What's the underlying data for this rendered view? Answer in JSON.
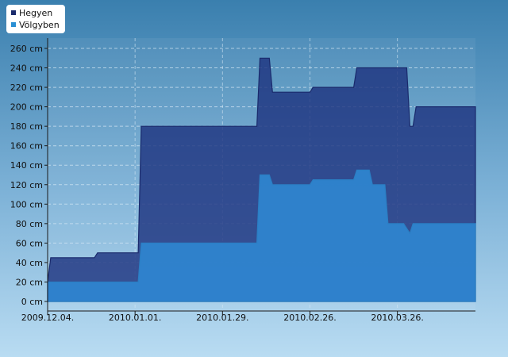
{
  "chart_data": {
    "type": "area",
    "title": "",
    "xlabel": "",
    "ylabel": "",
    "y_unit": "cm",
    "ylim": [
      0,
      270
    ],
    "yticks": [
      0,
      20,
      40,
      60,
      80,
      100,
      120,
      140,
      160,
      180,
      200,
      220,
      240,
      260
    ],
    "ytick_labels": [
      "0 cm",
      "20 cm",
      "40 cm",
      "60 cm",
      "80 cm",
      "100 cm",
      "120 cm",
      "140 cm",
      "160 cm",
      "180 cm",
      "200 cm",
      "220 cm",
      "240 cm",
      "260 cm"
    ],
    "xlim": [
      "2009.12.04.",
      "2010.04.20."
    ],
    "xtick_labels": [
      "2009.12.04.",
      "2010.01.01.",
      "2010.01.29.",
      "2010.02.26.",
      "2010.03.26."
    ],
    "grid": true,
    "legend_position": "top-left",
    "series": [
      {
        "name": "Hegyen",
        "color": "#1a2a6c",
        "points": [
          [
            "2009.12.04.",
            20
          ],
          [
            "2009.12.05.",
            45
          ],
          [
            "2009.12.19.",
            45
          ],
          [
            "2009.12.20.",
            50
          ],
          [
            "2010.01.02.",
            50
          ],
          [
            "2010.01.03.",
            180
          ],
          [
            "2010.02.09.",
            180
          ],
          [
            "2010.02.10.",
            250
          ],
          [
            "2010.02.13.",
            250
          ],
          [
            "2010.02.14.",
            215
          ],
          [
            "2010.02.26.",
            215
          ],
          [
            "2010.02.27.",
            220
          ],
          [
            "2010.03.12.",
            220
          ],
          [
            "2010.03.13.",
            240
          ],
          [
            "2010.03.29.",
            240
          ],
          [
            "2010.03.30.",
            180
          ],
          [
            "2010.03.31.",
            180
          ],
          [
            "2010.04.01.",
            200
          ],
          [
            "2010.04.20.",
            200
          ]
        ]
      },
      {
        "name": "Völgyben",
        "color": "#2a8fd4",
        "points": [
          [
            "2009.12.04.",
            20
          ],
          [
            "2010.01.02.",
            20
          ],
          [
            "2010.01.03.",
            60
          ],
          [
            "2010.02.09.",
            60
          ],
          [
            "2010.02.10.",
            130
          ],
          [
            "2010.02.13.",
            130
          ],
          [
            "2010.02.14.",
            120
          ],
          [
            "2010.02.26.",
            120
          ],
          [
            "2010.02.27.",
            125
          ],
          [
            "2010.03.12.",
            125
          ],
          [
            "2010.03.13.",
            135
          ],
          [
            "2010.03.17.",
            135
          ],
          [
            "2010.03.18.",
            120
          ],
          [
            "2010.03.22.",
            120
          ],
          [
            "2010.03.23.",
            80
          ],
          [
            "2010.03.28.",
            80
          ],
          [
            "2010.03.30.",
            70
          ],
          [
            "2010.03.31.",
            80
          ],
          [
            "2010.04.20.",
            80
          ]
        ]
      }
    ]
  }
}
